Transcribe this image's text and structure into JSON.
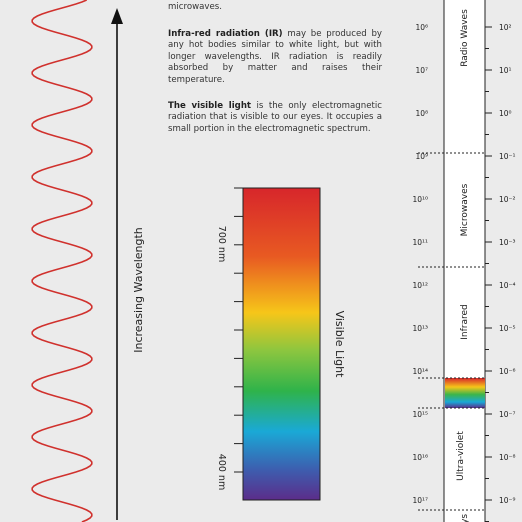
{
  "intro": {
    "text": "Microwave receivers can be used to detect microwaves."
  },
  "paragraphs": [
    {
      "lead": "Infra-red radiation (IR)",
      "text": " may be produced by any hot bodies similar to white light, but with longer wavelengths. IR radiation is readily absorbed by matter and raises their temperature."
    },
    {
      "lead": "The visible light",
      "text": " is the only electromagnetic radiation that is visible to our eyes. It occupies a small portion in the electromagnetic spectrum."
    }
  ],
  "arrow_label": "Increasing Wavelength",
  "visible_bar": {
    "top_label": "700 nm",
    "bottom_label": "400 nm",
    "title": "Visible Light"
  },
  "spectrum": {
    "left_labels": [
      "10⁶",
      "10⁷",
      "10⁸",
      "10⁹",
      "10¹⁰",
      "10¹¹",
      "10¹²",
      "10¹³",
      "10¹⁴",
      "10¹⁵",
      "10¹⁶",
      "10¹⁷"
    ],
    "right_labels": [
      "10²",
      "10¹",
      "10⁰",
      "10⁻¹",
      "10⁻²",
      "10⁻³",
      "10⁻⁴",
      "10⁻⁵",
      "10⁻⁶",
      "10⁻⁷",
      "10⁻⁸",
      "10⁻⁹"
    ],
    "bands": [
      "Radio Waves",
      "Microwaves",
      "Infrared",
      "Ultra-violet",
      "X-rays"
    ]
  }
}
